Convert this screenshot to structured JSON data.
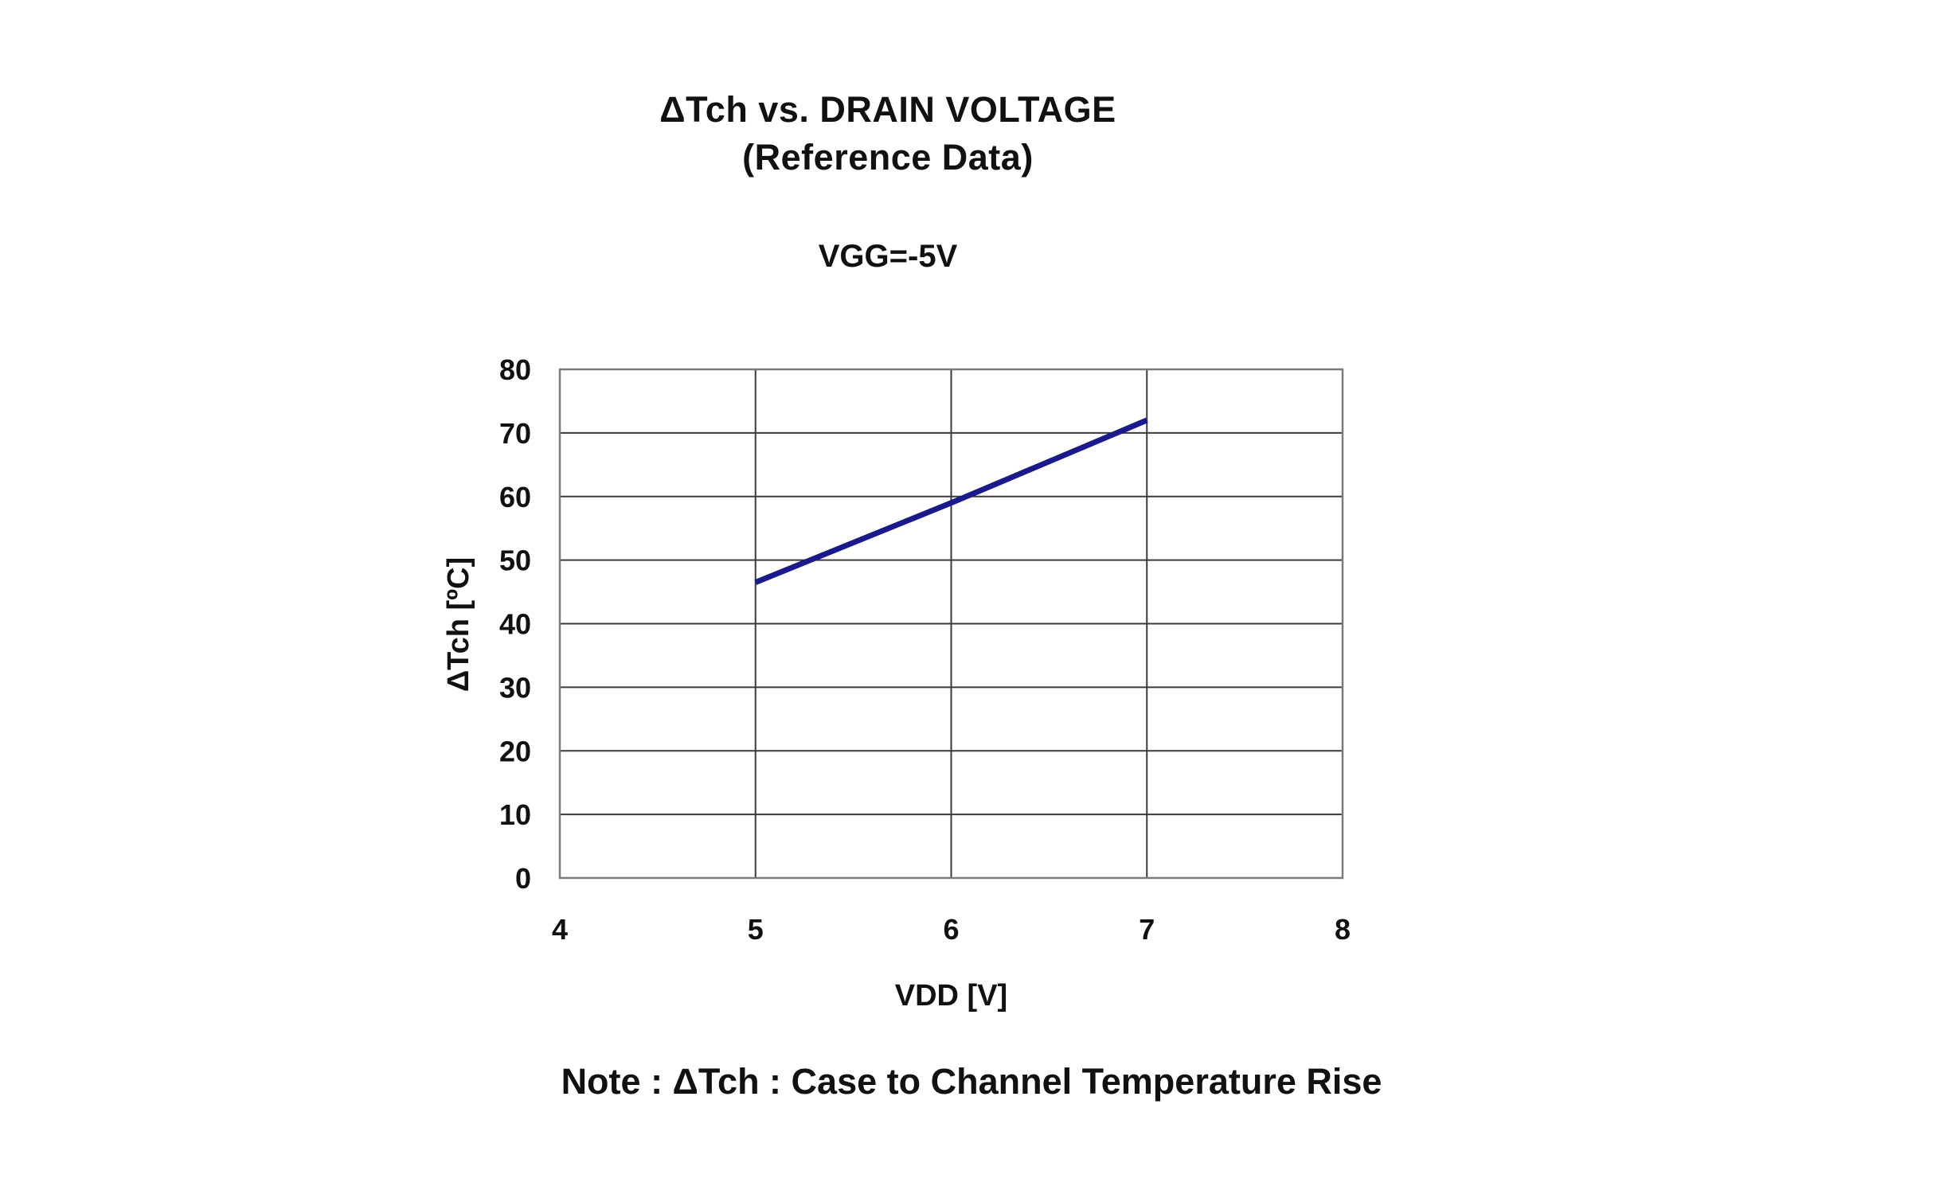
{
  "header": {
    "title": "ΔTch vs. DRAIN VOLTAGE",
    "subtitle": "(Reference Data)",
    "condition": "VGG=-5V"
  },
  "footer": {
    "note": "Note : ΔTch : Case to Channel Temperature Rise"
  },
  "chart_data": {
    "type": "line",
    "title": "ΔTch vs. DRAIN VOLTAGE",
    "subtitle": "(Reference Data)",
    "annotation": "VGG=-5V",
    "xlabel": "VDD [V]",
    "ylabel": "ΔTch [ºC]",
    "xlim": [
      4,
      8
    ],
    "ylim": [
      0,
      80
    ],
    "xticks": [
      "4",
      "5",
      "6",
      "7",
      "8"
    ],
    "yticks": [
      "0",
      "10",
      "20",
      "30",
      "40",
      "50",
      "60",
      "70",
      "80"
    ],
    "grid": true,
    "legend": "none",
    "series": [
      {
        "x": [
          5,
          6,
          7
        ],
        "y": [
          46.5,
          59,
          72
        ],
        "color": "#1a1a8c"
      }
    ]
  }
}
